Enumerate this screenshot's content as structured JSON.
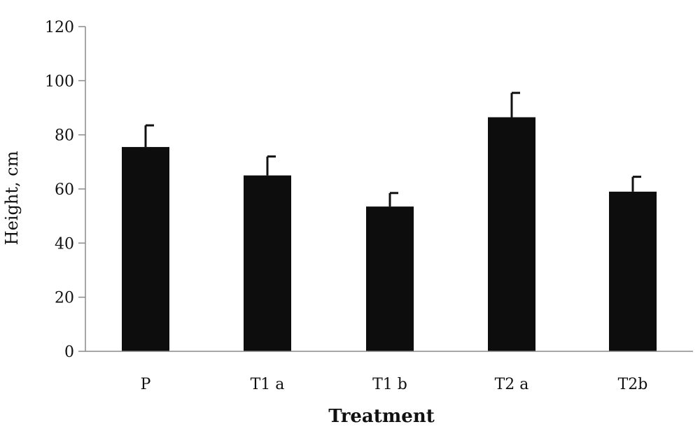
{
  "chart_data": {
    "type": "bar",
    "title": "",
    "xlabel": "Treatment",
    "ylabel": "Height, cm",
    "categories": [
      "P",
      "T1 a",
      "T1 b",
      "T2 a",
      "T2b"
    ],
    "values": [
      75.5,
      65,
      53.5,
      86.5,
      59
    ],
    "error_upper": [
      8,
      7,
      5,
      9,
      5.5
    ],
    "ylim": [
      0,
      120
    ],
    "yticks": [
      "0",
      "20",
      "40",
      "60",
      "80",
      "100",
      "120"
    ],
    "grid": false,
    "legend": "none",
    "bar_color": "#0d0d0d"
  }
}
